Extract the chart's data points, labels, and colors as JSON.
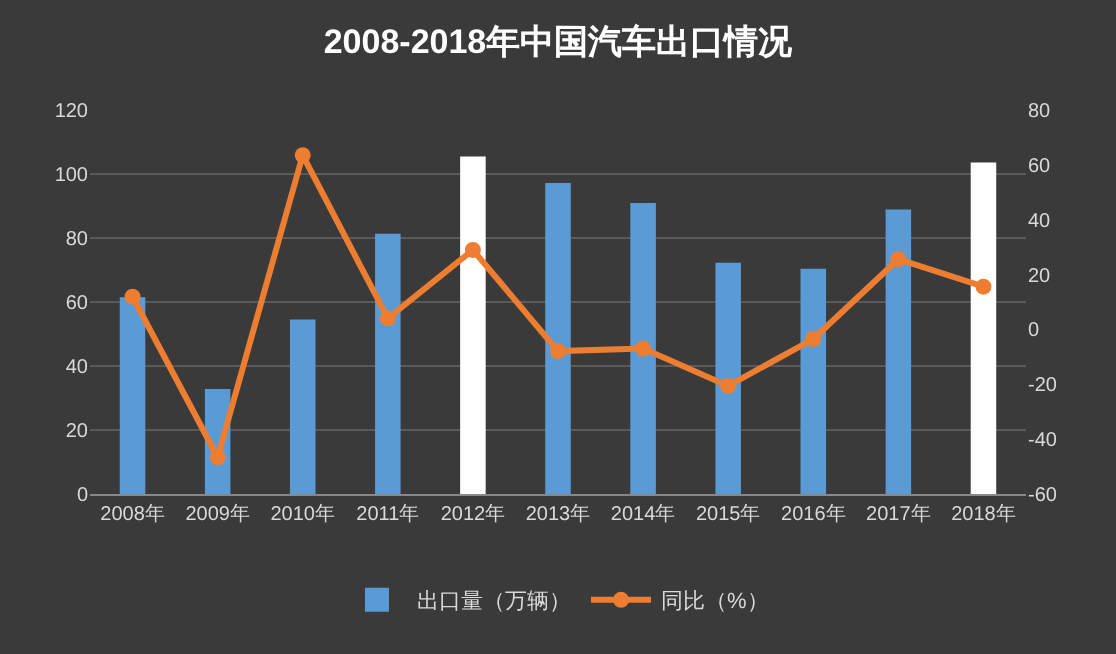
{
  "chart_data": {
    "type": "bar",
    "title": "2008-2018年中国汽车出口情况",
    "categories": [
      "2008年",
      "2009年",
      "2010年",
      "2011年",
      "2012年",
      "2013年",
      "2014年",
      "2015年",
      "2016年",
      "2017年",
      "2018年"
    ],
    "series": [
      {
        "name": "出口量（万辆）",
        "colors": [
          "#5b9bd5",
          "#5b9bd5",
          "#5b9bd5",
          "#5b9bd5",
          "#ffffff",
          "#5b9bd5",
          "#5b9bd5",
          "#5b9bd5",
          "#5b9bd5",
          "#5b9bd5",
          "#ffffff"
        ],
        "values": [
          61.5,
          32.8,
          54.5,
          81.3,
          105.5,
          97.2,
          90.9,
          72.3,
          70.4,
          88.9,
          103.6
        ]
      },
      {
        "name": "同比（%）",
        "type": "line",
        "axis": "y2",
        "color": "#ed7d31",
        "values": [
          11.9,
          -46.6,
          63.5,
          4,
          29,
          -7.9,
          -7,
          -20.6,
          -3.5,
          25.6,
          15.6
        ]
      }
    ],
    "ylim": [
      0,
      120
    ],
    "yticks": [
      0,
      20,
      40,
      60,
      80,
      100,
      120
    ],
    "y2lim": [
      -60,
      80
    ],
    "y2ticks": [
      -60,
      -40,
      -20,
      0,
      20,
      40,
      60,
      80
    ],
    "grid": "y",
    "legend": "bottom",
    "marker": "circle",
    "line_style": "solid"
  }
}
